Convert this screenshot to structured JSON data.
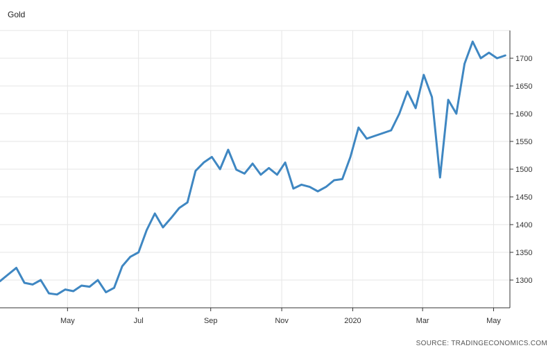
{
  "chart_data": {
    "type": "line",
    "title": "Gold",
    "source": "SOURCE: TRADINGECONOMICS.COM",
    "ylim": [
      1250,
      1750
    ],
    "yticks": [
      1300,
      1350,
      1400,
      1450,
      1500,
      1550,
      1600,
      1650,
      1700
    ],
    "xticks": [
      {
        "label": "May",
        "date": "2019-05-01"
      },
      {
        "label": "Jul",
        "date": "2019-07-01"
      },
      {
        "label": "Sep",
        "date": "2019-09-01"
      },
      {
        "label": "Nov",
        "date": "2019-11-01"
      },
      {
        "label": "2020",
        "date": "2020-01-01"
      },
      {
        "label": "Mar",
        "date": "2020-03-01"
      },
      {
        "label": "May",
        "date": "2020-05-01"
      }
    ],
    "xlim": [
      "2019-03-04",
      "2020-05-15"
    ],
    "grid": true,
    "y_axis_side": "right",
    "color": "#3f87c2",
    "series": [
      {
        "x": [
          "2019-03-04",
          "2019-03-11",
          "2019-03-18",
          "2019-03-25",
          "2019-04-01",
          "2019-04-08",
          "2019-04-15",
          "2019-04-22",
          "2019-04-29",
          "2019-05-06",
          "2019-05-13",
          "2019-05-20",
          "2019-05-27",
          "2019-06-03",
          "2019-06-10",
          "2019-06-17",
          "2019-06-24",
          "2019-07-01",
          "2019-07-08",
          "2019-07-15",
          "2019-07-22",
          "2019-07-29",
          "2019-08-05",
          "2019-08-12",
          "2019-08-19",
          "2019-08-26",
          "2019-09-02",
          "2019-09-09",
          "2019-09-16",
          "2019-09-23",
          "2019-09-30",
          "2019-10-07",
          "2019-10-14",
          "2019-10-21",
          "2019-10-28",
          "2019-11-04",
          "2019-11-11",
          "2019-11-18",
          "2019-11-25",
          "2019-12-02",
          "2019-12-09",
          "2019-12-16",
          "2019-12-23",
          "2019-12-30",
          "2020-01-06",
          "2020-01-13",
          "2020-01-20",
          "2020-01-27",
          "2020-02-03",
          "2020-02-10",
          "2020-02-17",
          "2020-02-24",
          "2020-03-02",
          "2020-03-09",
          "2020-03-16",
          "2020-03-23",
          "2020-03-30",
          "2020-04-06",
          "2020-04-13",
          "2020-04-20",
          "2020-04-27",
          "2020-05-04",
          "2020-05-11"
        ],
        "values": [
          1298,
          1310,
          1322,
          1295,
          1292,
          1300,
          1276,
          1274,
          1283,
          1280,
          1290,
          1288,
          1300,
          1278,
          1286,
          1325,
          1342,
          1350,
          1390,
          1420,
          1395,
          1412,
          1430,
          1440,
          1497,
          1512,
          1522,
          1500,
          1535,
          1499,
          1492,
          1510,
          1490,
          1502,
          1490,
          1512,
          1465,
          1472,
          1468,
          1460,
          1468,
          1480,
          1482,
          1522,
          1575,
          1555,
          1560,
          1565,
          1570,
          1600,
          1640,
          1610,
          1670,
          1630,
          1485,
          1625,
          1600,
          1690,
          1730,
          1700,
          1710,
          1700,
          1705
        ]
      }
    ]
  }
}
